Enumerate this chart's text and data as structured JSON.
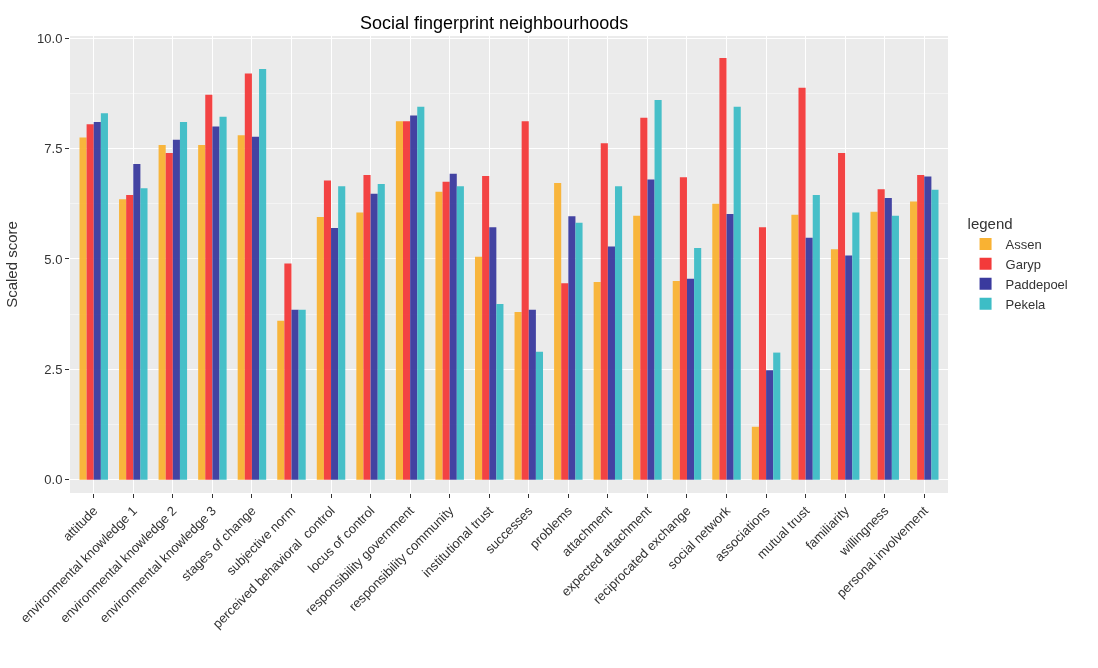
{
  "chart_data": {
    "type": "bar",
    "title": "Social fingerprint neighbourhoods",
    "ylabel": "Scaled score",
    "legend_title": "legend",
    "categories": [
      "attitude",
      "environmental knowledge 1",
      "environmental knowledge 2",
      "environmental knowledge 3",
      "stages of change",
      "subjective norm",
      "perceived behavioral  control",
      "locus of control",
      "responsibility government",
      "responsibility community",
      "institutional trust",
      "successes",
      "problems",
      "attachment",
      "expected attachment",
      "reciprocated exchange",
      "social network",
      "associations",
      "mutual trust",
      "familiarity",
      "willingness",
      "personal involvement"
    ],
    "series": [
      {
        "name": "Assen",
        "color": "#f9b233",
        "values": [
          7.75,
          6.35,
          7.58,
          7.58,
          7.8,
          3.6,
          5.95,
          6.05,
          8.12,
          6.52,
          5.05,
          3.8,
          6.72,
          4.48,
          5.98,
          4.5,
          6.25,
          1.2,
          6.0,
          5.22,
          6.07,
          6.3
        ]
      },
      {
        "name": "Garyp",
        "color": "#f33a3a",
        "values": [
          8.05,
          6.45,
          7.4,
          8.72,
          9.2,
          4.9,
          6.78,
          6.9,
          8.12,
          6.75,
          6.88,
          8.12,
          4.45,
          7.62,
          8.2,
          6.85,
          9.55,
          5.72,
          8.88,
          7.4,
          6.58,
          6.9
        ]
      },
      {
        "name": "Paddepoel",
        "color": "#3a3a9e",
        "values": [
          8.1,
          7.15,
          7.7,
          8.0,
          7.77,
          3.85,
          5.7,
          6.48,
          8.25,
          6.93,
          5.72,
          3.85,
          5.97,
          5.28,
          6.8,
          4.55,
          6.02,
          2.48,
          5.48,
          5.08,
          6.38,
          6.87
        ]
      },
      {
        "name": "Pekela",
        "color": "#3dbdc6",
        "values": [
          8.3,
          6.6,
          8.1,
          8.22,
          9.3,
          3.85,
          6.65,
          6.7,
          8.45,
          6.65,
          3.98,
          2.9,
          5.82,
          6.65,
          8.6,
          5.25,
          8.45,
          2.88,
          6.45,
          6.05,
          5.98,
          6.57
        ]
      }
    ],
    "ylim": [
      -0.3,
      10.05
    ],
    "yticks": [
      {
        "value": 0,
        "label": "0.0"
      },
      {
        "value": 2.5,
        "label": "2.5"
      },
      {
        "value": 5,
        "label": "5.0"
      },
      {
        "value": 7.5,
        "label": "7.5"
      },
      {
        "value": 10,
        "label": "10.0"
      }
    ],
    "grid": true,
    "legend": "right"
  }
}
